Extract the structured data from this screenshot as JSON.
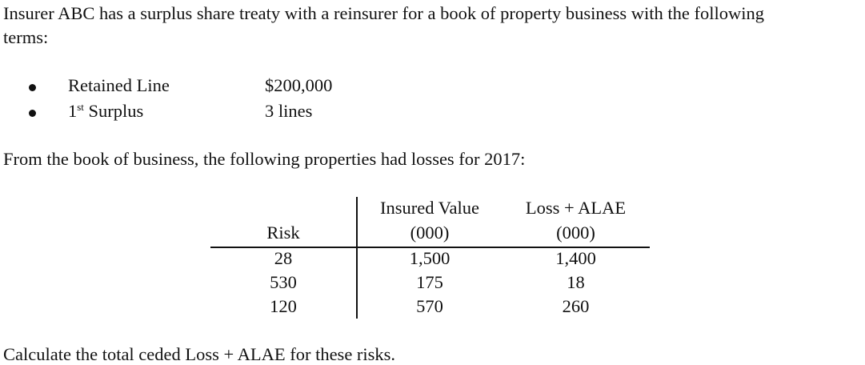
{
  "intro": {
    "line1": "Insurer ABC has a surplus share treaty with a reinsurer for a book of property business with the following",
    "line2": "terms:"
  },
  "terms": [
    {
      "label": "Retained Line",
      "value": "$200,000"
    },
    {
      "label_prefix": "1",
      "label_sup": "st",
      "label_rest": " Surplus",
      "value": "3 lines"
    }
  ],
  "losses_intro": "From the book of business, the following properties had losses for 2017:",
  "table": {
    "headers": {
      "risk": "Risk",
      "insured_value_line1": "Insured Value",
      "insured_value_line2": "(000)",
      "loss_line1": "Loss + ALAE",
      "loss_line2": "(000)"
    },
    "rows": [
      {
        "risk": "28",
        "insured_value": "1,500",
        "loss": "1,400"
      },
      {
        "risk": "530",
        "insured_value": "175",
        "loss": "18"
      },
      {
        "risk": "120",
        "insured_value": "570",
        "loss": "260"
      }
    ]
  },
  "question": "Calculate the total ceded Loss + ALAE for these risks."
}
